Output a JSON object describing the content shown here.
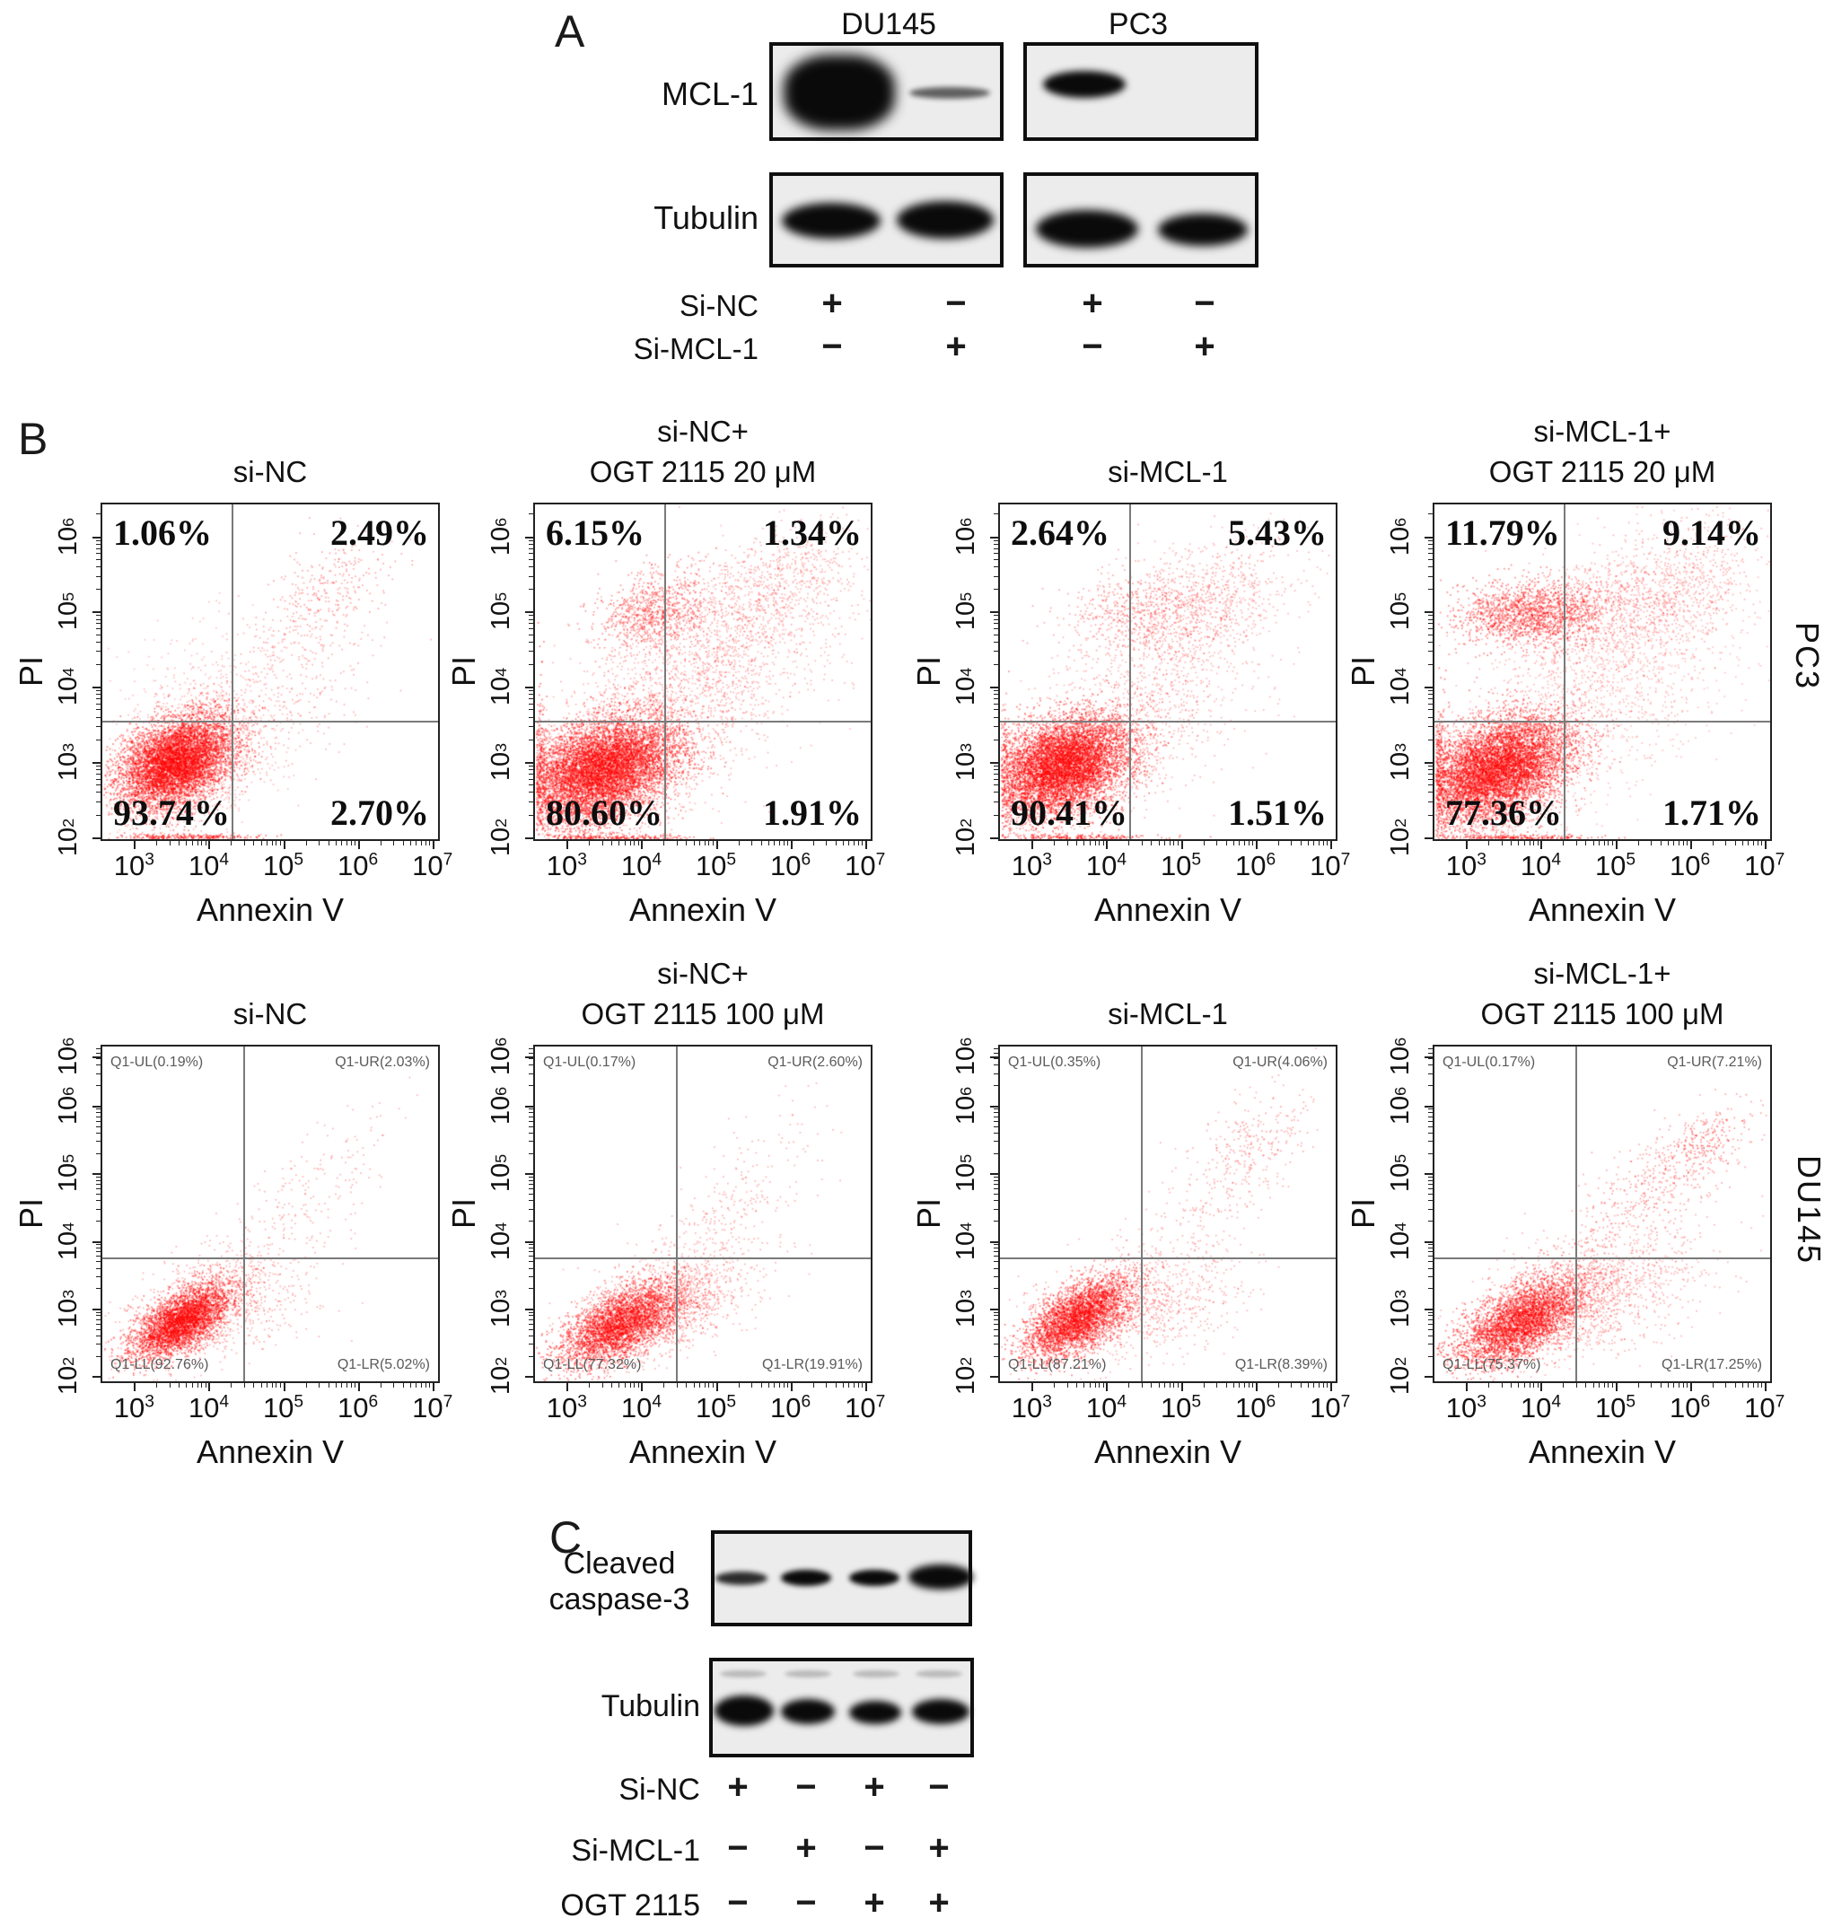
{
  "panel_a": {
    "label": "A",
    "cell_lines": [
      "DU145",
      "PC3"
    ],
    "proteins": [
      "MCL-1",
      "Tubulin"
    ],
    "conditions": [
      {
        "label": "Si-NC",
        "marks": [
          "+",
          "−",
          "+",
          "−"
        ]
      },
      {
        "label": "Si-MCL-1",
        "marks": [
          "−",
          "+",
          "−",
          "+"
        ]
      }
    ]
  },
  "panel_b": {
    "label": "B",
    "row_labels": [
      "PC3",
      "DU145"
    ]
  },
  "panel_c": {
    "label": "C",
    "protein_line1": "Cleaved",
    "protein_line2": "caspase-3",
    "protein2": "Tubulin",
    "conditions": [
      {
        "label": "Si-NC",
        "marks": [
          "+",
          "−",
          "+",
          "−"
        ]
      },
      {
        "label": "Si-MCL-1",
        "marks": [
          "−",
          "+",
          "−",
          "+"
        ]
      },
      {
        "label": "OGT 2115",
        "marks": [
          "−",
          "−",
          "+",
          "+"
        ]
      }
    ]
  },
  "chart_data": [
    {
      "type": "scatter",
      "id": "pc3-si-nc",
      "cell_line": "PC3",
      "title_lines": [
        "si-NC"
      ],
      "xlabel": "Annexin V",
      "ylabel": "PI",
      "x_ticks": [
        "10^3",
        "10^4",
        "10^5",
        "10^6",
        "10^7"
      ],
      "y_ticks": [
        "10^6",
        "10^5",
        "10^4",
        "10^3",
        "10^2"
      ],
      "xlim_log": [
        2.55,
        7.1
      ],
      "ylim_log": [
        1.95,
        6.45
      ],
      "divider": {
        "x_frac": 0.385,
        "y_frac": 0.645
      },
      "quad_style": "large",
      "quadrants": {
        "ul": "1.06%",
        "ur": "2.49%",
        "ll": "93.74%",
        "lr": "2.70%"
      },
      "clusters": [
        {
          "n": 6000,
          "cx": 3.55,
          "cy": 3.0,
          "sx": 0.38,
          "sy": 0.3,
          "rho": 0.35,
          "a": 0.5
        },
        {
          "n": 1500,
          "cx": 3.6,
          "cy": 2.95,
          "sx": 0.55,
          "sy": 0.45,
          "rho": 0.3,
          "a": 0.25
        },
        {
          "n": 300,
          "cx": 4.6,
          "cy": 3.4,
          "sx": 0.7,
          "sy": 0.5,
          "rho": 0.5,
          "a": 0.3
        },
        {
          "n": 280,
          "cx": 5.1,
          "cy": 4.4,
          "sx": 0.65,
          "sy": 0.6,
          "rho": 0.6,
          "a": 0.3
        },
        {
          "n": 240,
          "cx": 5.6,
          "cy": 5.35,
          "sx": 0.45,
          "sy": 0.4,
          "rho": 0.4,
          "a": 0.35
        },
        {
          "n": 160,
          "cx": 3.9,
          "cy": 4.1,
          "sx": 0.5,
          "sy": 0.45,
          "rho": 0.0,
          "a": 0.25
        },
        {
          "n": 250,
          "cx": 3.7,
          "cy": 1.99,
          "sx": 0.5,
          "sy": 0.02,
          "rho": 0.0,
          "a": 0.5
        }
      ]
    },
    {
      "type": "scatter",
      "id": "pc3-si-nc-ogt20",
      "cell_line": "PC3",
      "title_lines": [
        "si-NC+",
        "OGT 2115 20 μM"
      ],
      "xlabel": "Annexin V",
      "ylabel": "PI",
      "x_ticks": [
        "10^3",
        "10^4",
        "10^5",
        "10^6",
        "10^7"
      ],
      "y_ticks": [
        "10^6",
        "10^5",
        "10^4",
        "10^3",
        "10^2"
      ],
      "xlim_log": [
        2.55,
        7.1
      ],
      "ylim_log": [
        1.95,
        6.45
      ],
      "divider": {
        "x_frac": 0.385,
        "y_frac": 0.645
      },
      "quad_style": "large",
      "quadrants": {
        "ul": "6.15%",
        "ur": "1.34%",
        "ll": "80.60%",
        "lr": "1.91%"
      },
      "clusters": [
        {
          "n": 7000,
          "cx": 3.45,
          "cy": 2.9,
          "sx": 0.5,
          "sy": 0.35,
          "rho": 0.35,
          "a": 0.5
        },
        {
          "n": 2000,
          "cx": 3.2,
          "cy": 2.75,
          "sx": 0.65,
          "sy": 0.5,
          "rho": 0.3,
          "a": 0.3
        },
        {
          "n": 900,
          "cx": 4.15,
          "cy": 5.0,
          "sx": 0.38,
          "sy": 0.28,
          "rho": 0.2,
          "a": 0.4
        },
        {
          "n": 1800,
          "cx": 4.9,
          "cy": 4.3,
          "sx": 0.95,
          "sy": 0.85,
          "rho": 0.55,
          "a": 0.28
        },
        {
          "n": 500,
          "cx": 5.8,
          "cy": 5.35,
          "sx": 0.55,
          "sy": 0.45,
          "rho": 0.5,
          "a": 0.3
        },
        {
          "n": 400,
          "cx": 4.3,
          "cy": 3.3,
          "sx": 0.6,
          "sy": 0.5,
          "rho": 0.3,
          "a": 0.3
        },
        {
          "n": 300,
          "cx": 2.6,
          "cy": 2.9,
          "sx": 0.05,
          "sy": 0.5,
          "rho": 0.0,
          "a": 0.5
        },
        {
          "n": 250,
          "cx": 3.6,
          "cy": 1.98,
          "sx": 0.55,
          "sy": 0.02,
          "rho": 0.0,
          "a": 0.5
        }
      ]
    },
    {
      "type": "scatter",
      "id": "pc3-si-mcl1",
      "cell_line": "PC3",
      "title_lines": [
        "si-MCL-1"
      ],
      "xlabel": "Annexin V",
      "ylabel": "PI",
      "x_ticks": [
        "10^3",
        "10^4",
        "10^5",
        "10^6",
        "10^7"
      ],
      "y_ticks": [
        "10^6",
        "10^5",
        "10^4",
        "10^3",
        "10^2"
      ],
      "xlim_log": [
        2.55,
        7.1
      ],
      "ylim_log": [
        1.95,
        6.45
      ],
      "divider": {
        "x_frac": 0.385,
        "y_frac": 0.645
      },
      "quad_style": "large",
      "quadrants": {
        "ul": "2.64%",
        "ur": "5.43%",
        "ll": "90.41%",
        "lr": "1.51%"
      },
      "clusters": [
        {
          "n": 6500,
          "cx": 3.4,
          "cy": 2.95,
          "sx": 0.45,
          "sy": 0.33,
          "rho": 0.35,
          "a": 0.5
        },
        {
          "n": 1500,
          "cx": 3.3,
          "cy": 2.8,
          "sx": 0.6,
          "sy": 0.45,
          "rho": 0.3,
          "a": 0.3
        },
        {
          "n": 600,
          "cx": 4.5,
          "cy": 5.05,
          "sx": 0.55,
          "sy": 0.3,
          "rho": 0.2,
          "a": 0.35
        },
        {
          "n": 1000,
          "cx": 4.9,
          "cy": 4.5,
          "sx": 0.8,
          "sy": 0.75,
          "rho": 0.5,
          "a": 0.28
        },
        {
          "n": 350,
          "cx": 5.5,
          "cy": 5.1,
          "sx": 0.5,
          "sy": 0.4,
          "rho": 0.5,
          "a": 0.3
        },
        {
          "n": 300,
          "cx": 4.4,
          "cy": 3.2,
          "sx": 0.6,
          "sy": 0.45,
          "rho": 0.4,
          "a": 0.3
        },
        {
          "n": 220,
          "cx": 3.6,
          "cy": 1.98,
          "sx": 0.5,
          "sy": 0.02,
          "rho": 0.0,
          "a": 0.5
        },
        {
          "n": 200,
          "cx": 2.6,
          "cy": 2.9,
          "sx": 0.05,
          "sy": 0.45,
          "rho": 0.0,
          "a": 0.45
        }
      ]
    },
    {
      "type": "scatter",
      "id": "pc3-si-mcl1-ogt20",
      "cell_line": "PC3",
      "title_lines": [
        "si-MCL-1+",
        "OGT 2115 20 μM"
      ],
      "xlabel": "Annexin V",
      "ylabel": "PI",
      "x_ticks": [
        "10^3",
        "10^4",
        "10^5",
        "10^6",
        "10^7"
      ],
      "y_ticks": [
        "10^6",
        "10^5",
        "10^4",
        "10^3",
        "10^2"
      ],
      "xlim_log": [
        2.55,
        7.1
      ],
      "ylim_log": [
        1.95,
        6.45
      ],
      "divider": {
        "x_frac": 0.385,
        "y_frac": 0.645
      },
      "quad_style": "large",
      "quadrants": {
        "ul": "11.79%",
        "ur": "9.14%",
        "ll": "77.36%",
        "lr": "1.71%"
      },
      "clusters": [
        {
          "n": 6500,
          "cx": 3.4,
          "cy": 2.9,
          "sx": 0.48,
          "sy": 0.35,
          "rho": 0.4,
          "a": 0.5
        },
        {
          "n": 1500,
          "cx": 3.3,
          "cy": 2.75,
          "sx": 0.6,
          "sy": 0.5,
          "rho": 0.3,
          "a": 0.3
        },
        {
          "n": 1600,
          "cx": 3.85,
          "cy": 5.0,
          "sx": 0.5,
          "sy": 0.22,
          "rho": 0.1,
          "a": 0.45
        },
        {
          "n": 700,
          "cx": 4.9,
          "cy": 5.1,
          "sx": 0.7,
          "sy": 0.45,
          "rho": 0.4,
          "a": 0.3
        },
        {
          "n": 1400,
          "cx": 4.9,
          "cy": 4.1,
          "sx": 0.95,
          "sy": 0.9,
          "rho": 0.55,
          "a": 0.25
        },
        {
          "n": 500,
          "cx": 5.9,
          "cy": 5.3,
          "sx": 0.55,
          "sy": 0.5,
          "rho": 0.5,
          "a": 0.3
        },
        {
          "n": 300,
          "cx": 2.6,
          "cy": 2.85,
          "sx": 0.05,
          "sy": 0.5,
          "rho": 0.0,
          "a": 0.5
        },
        {
          "n": 250,
          "cx": 3.7,
          "cy": 1.98,
          "sx": 0.55,
          "sy": 0.02,
          "rho": 0.0,
          "a": 0.5
        }
      ]
    },
    {
      "type": "scatter",
      "id": "du145-si-nc",
      "cell_line": "DU145",
      "title_lines": [
        "si-NC"
      ],
      "xlabel": "Annexin V",
      "ylabel": "PI",
      "x_ticks": [
        "10^3",
        "10^4",
        "10^5",
        "10^6",
        "10^7"
      ],
      "y_ticks": [
        "10^6",
        "10^6",
        "10^5",
        "10^4",
        "10^3",
        "10^2"
      ],
      "xlim_log": [
        2.55,
        7.1
      ],
      "ylim_log": [
        1.9,
        6.9
      ],
      "divider": {
        "x_frac": 0.42,
        "y_frac": 0.63
      },
      "quad_style": "small",
      "quadrants": {
        "ul": "Q1-UL(0.19%)",
        "ur": "Q1-UR(2.03%)",
        "ll": "Q1-LL(92.76%)",
        "lr": "Q1-LR(5.02%)"
      },
      "clusters": [
        {
          "n": 3500,
          "cx": 3.62,
          "cy": 2.8,
          "sx": 0.33,
          "sy": 0.28,
          "rho": 0.65,
          "a": 0.5
        },
        {
          "n": 800,
          "cx": 3.7,
          "cy": 2.9,
          "sx": 0.5,
          "sy": 0.4,
          "rho": 0.5,
          "a": 0.3
        },
        {
          "n": 350,
          "cx": 4.4,
          "cy": 3.0,
          "sx": 0.55,
          "sy": 0.4,
          "rho": 0.3,
          "a": 0.3
        },
        {
          "n": 250,
          "cx": 5.3,
          "cy": 4.6,
          "sx": 0.6,
          "sy": 0.7,
          "rho": 0.75,
          "a": 0.3
        },
        {
          "n": 60,
          "cx": 4.2,
          "cy": 3.6,
          "sx": 0.4,
          "sy": 0.3,
          "rho": 0.3,
          "a": 0.3
        }
      ]
    },
    {
      "type": "scatter",
      "id": "du145-si-nc-ogt100",
      "cell_line": "DU145",
      "title_lines": [
        "si-NC+",
        "OGT 2115 100 μM"
      ],
      "xlabel": "Annexin V",
      "ylabel": "PI",
      "x_ticks": [
        "10^3",
        "10^4",
        "10^5",
        "10^6",
        "10^7"
      ],
      "y_ticks": [
        "10^6",
        "10^6",
        "10^5",
        "10^4",
        "10^3",
        "10^2"
      ],
      "xlim_log": [
        2.55,
        7.1
      ],
      "ylim_log": [
        1.9,
        6.9
      ],
      "divider": {
        "x_frac": 0.42,
        "y_frac": 0.63
      },
      "quad_style": "small",
      "quadrants": {
        "ul": "Q1-UL(0.17%)",
        "ur": "Q1-UR(2.60%)",
        "ll": "Q1-LL(77.32%)",
        "lr": "Q1-LR(19.91%)"
      },
      "clusters": [
        {
          "n": 3200,
          "cx": 3.7,
          "cy": 2.75,
          "sx": 0.4,
          "sy": 0.3,
          "rho": 0.6,
          "a": 0.5
        },
        {
          "n": 900,
          "cx": 4.0,
          "cy": 2.9,
          "sx": 0.55,
          "sy": 0.4,
          "rho": 0.5,
          "a": 0.3
        },
        {
          "n": 700,
          "cx": 4.5,
          "cy": 3.1,
          "sx": 0.55,
          "sy": 0.4,
          "rho": 0.4,
          "a": 0.3
        },
        {
          "n": 220,
          "cx": 5.4,
          "cy": 4.7,
          "sx": 0.55,
          "sy": 0.75,
          "rho": 0.7,
          "a": 0.3
        },
        {
          "n": 80,
          "cx": 4.6,
          "cy": 3.9,
          "sx": 0.5,
          "sy": 0.4,
          "rho": 0.4,
          "a": 0.3
        }
      ]
    },
    {
      "type": "scatter",
      "id": "du145-si-mcl1",
      "cell_line": "DU145",
      "title_lines": [
        "si-MCL-1"
      ],
      "xlabel": "Annexin V",
      "ylabel": "PI",
      "x_ticks": [
        "10^3",
        "10^4",
        "10^5",
        "10^6",
        "10^7"
      ],
      "y_ticks": [
        "10^6",
        "10^6",
        "10^5",
        "10^4",
        "10^3",
        "10^2"
      ],
      "xlim_log": [
        2.55,
        7.1
      ],
      "ylim_log": [
        1.9,
        6.9
      ],
      "divider": {
        "x_frac": 0.42,
        "y_frac": 0.63
      },
      "quad_style": "small",
      "quadrants": {
        "ul": "Q1-UL(0.35%)",
        "ur": "Q1-UR(4.06%)",
        "ll": "Q1-LL(87.21%)",
        "lr": "Q1-LR(8.39%)"
      },
      "clusters": [
        {
          "n": 3200,
          "cx": 3.6,
          "cy": 2.85,
          "sx": 0.35,
          "sy": 0.3,
          "rho": 0.6,
          "a": 0.5
        },
        {
          "n": 800,
          "cx": 3.8,
          "cy": 2.9,
          "sx": 0.5,
          "sy": 0.4,
          "rho": 0.5,
          "a": 0.3
        },
        {
          "n": 550,
          "cx": 4.7,
          "cy": 3.1,
          "sx": 0.6,
          "sy": 0.45,
          "rho": 0.35,
          "a": 0.3
        },
        {
          "n": 300,
          "cx": 5.6,
          "cy": 4.9,
          "sx": 0.55,
          "sy": 0.75,
          "rho": 0.7,
          "a": 0.3
        },
        {
          "n": 120,
          "cx": 6.0,
          "cy": 5.5,
          "sx": 0.35,
          "sy": 0.3,
          "rho": 0.4,
          "a": 0.35
        }
      ]
    },
    {
      "type": "scatter",
      "id": "du145-si-mcl1-ogt100",
      "cell_line": "DU145",
      "title_lines": [
        "si-MCL-1+",
        "OGT 2115 100 μM"
      ],
      "xlabel": "Annexin V",
      "ylabel": "PI",
      "x_ticks": [
        "10^3",
        "10^4",
        "10^5",
        "10^6",
        "10^7"
      ],
      "y_ticks": [
        "10^6",
        "10^6",
        "10^5",
        "10^4",
        "10^3",
        "10^2"
      ],
      "xlim_log": [
        2.55,
        7.1
      ],
      "ylim_log": [
        1.9,
        6.9
      ],
      "divider": {
        "x_frac": 0.42,
        "y_frac": 0.63
      },
      "quad_style": "small",
      "quadrants": {
        "ul": "Q1-UL(0.17%)",
        "ur": "Q1-UR(7.21%)",
        "ll": "Q1-LL(75.37%)",
        "lr": "Q1-LR(17.25%)"
      },
      "clusters": [
        {
          "n": 3400,
          "cx": 3.7,
          "cy": 2.8,
          "sx": 0.42,
          "sy": 0.33,
          "rho": 0.6,
          "a": 0.5
        },
        {
          "n": 1000,
          "cx": 4.1,
          "cy": 3.0,
          "sx": 0.6,
          "sy": 0.45,
          "rho": 0.5,
          "a": 0.3
        },
        {
          "n": 900,
          "cx": 4.9,
          "cy": 3.3,
          "sx": 0.7,
          "sy": 0.5,
          "rho": 0.4,
          "a": 0.3
        },
        {
          "n": 450,
          "cx": 5.7,
          "cy": 5.0,
          "sx": 0.6,
          "sy": 0.5,
          "rho": 0.7,
          "a": 0.35
        },
        {
          "n": 150,
          "cx": 6.2,
          "cy": 5.5,
          "sx": 0.3,
          "sy": 0.25,
          "rho": 0.5,
          "a": 0.4
        }
      ]
    }
  ]
}
